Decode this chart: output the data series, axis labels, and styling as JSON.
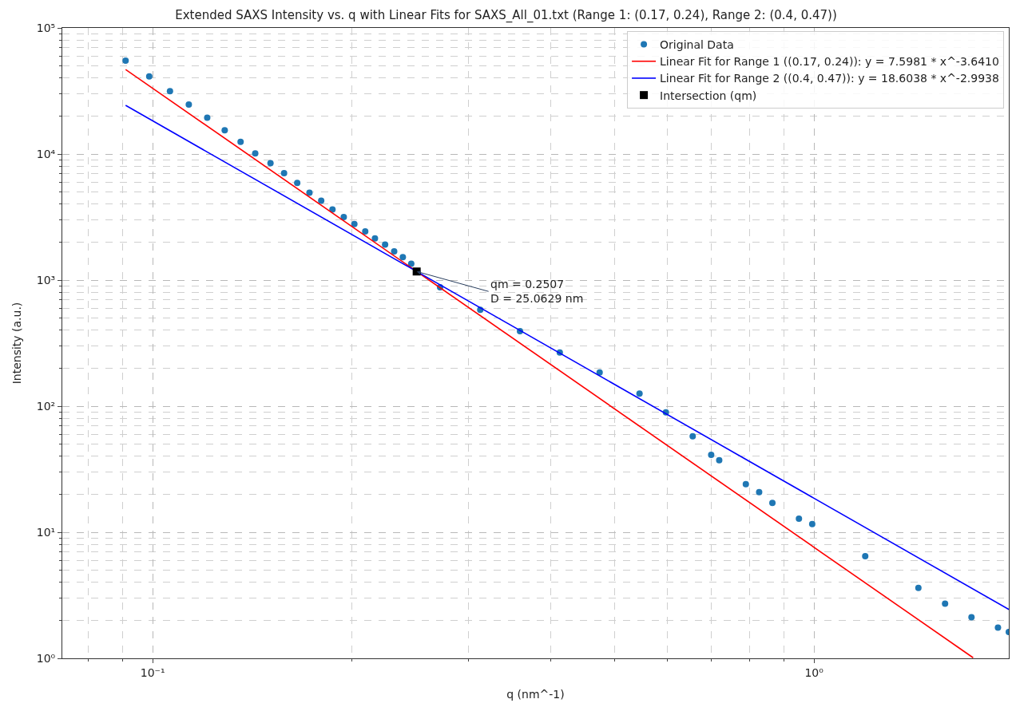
{
  "chart_data": {
    "type": "scatter",
    "title": "Extended SAXS Intensity vs. q with Linear Fits for SAXS_All_01.txt (Range 1: (0.17, 0.24), Range 2: (0.4, 0.47))",
    "xlabel": "q (nm^-1)",
    "ylabel": "Intensity (a.u.)",
    "log": "xy",
    "grid": true,
    "legend": "top right",
    "xlim": [
      0.073,
      1.97
    ],
    "ylim": [
      1,
      100000
    ],
    "xticks": [
      {
        "value": 0.1,
        "label": "10⁻¹"
      },
      {
        "value": 1,
        "label": "10⁰"
      }
    ],
    "yticks": [
      {
        "value": 1,
        "label": "10⁰"
      },
      {
        "value": 10,
        "label": "10¹"
      },
      {
        "value": 100,
        "label": "10²"
      },
      {
        "value": 1000,
        "label": "10³"
      },
      {
        "value": 10000,
        "label": "10⁴"
      },
      {
        "value": 100000,
        "label": "10⁵"
      }
    ],
    "series": [
      {
        "name": "Original Data",
        "marker": "circle",
        "color": "#1f77b4",
        "x": [
          0.091,
          0.0988,
          0.1062,
          0.1134,
          0.1209,
          0.1285,
          0.1358,
          0.1429,
          0.1507,
          0.158,
          0.1654,
          0.1726,
          0.1798,
          0.187,
          0.1945,
          0.2018,
          0.2096,
          0.2168,
          0.2246,
          0.2318,
          0.2389,
          0.246,
          0.272,
          0.3128,
          0.3592,
          0.4126,
          0.474,
          0.5446,
          0.597,
          0.6554,
          0.699,
          0.7188,
          0.7886,
          0.826,
          0.865,
          0.9487,
          0.9936,
          1.195,
          1.438,
          1.578,
          1.73,
          1.897,
          1.97
        ],
        "values": [
          55000,
          41300,
          31500,
          24700,
          19400,
          15400,
          12500,
          10100,
          8450,
          7060,
          5890,
          4940,
          4270,
          3630,
          3160,
          2780,
          2430,
          2140,
          1910,
          1690,
          1520,
          1350,
          877,
          581,
          394,
          266,
          185,
          126,
          89.3,
          57.7,
          41.1,
          37.3,
          24.1,
          20.8,
          17.1,
          12.8,
          11.6,
          6.47,
          3.62,
          2.71,
          2.12,
          1.75,
          1.62
        ]
      },
      {
        "name": "Linear Fit for Range 1 ((0.17, 0.24)): y = 7.5981 * x^-3.6410",
        "type": "line",
        "line_style": "solid",
        "color": "#ff0000",
        "x": [
          0.091,
          1.74
        ],
        "values": [
          46830,
          1.011
        ]
      },
      {
        "name": "Linear Fit for Range 2 ((0.4, 0.47)): y = 18.6038 * x^-2.9938",
        "type": "line",
        "line_style": "solid",
        "color": "#0000ff",
        "x": [
          0.091,
          1.97
        ],
        "values": [
          24308,
          2.443
        ]
      },
      {
        "name": "Intersection (qm)",
        "marker": "square",
        "color": "#000000",
        "x": [
          0.2507
        ],
        "values": [
          1170
        ]
      }
    ],
    "annotations": [
      {
        "text": "qm = 0.2507\nD = 25.0629 nm",
        "x": 0.2507,
        "y": 1170
      }
    ]
  }
}
